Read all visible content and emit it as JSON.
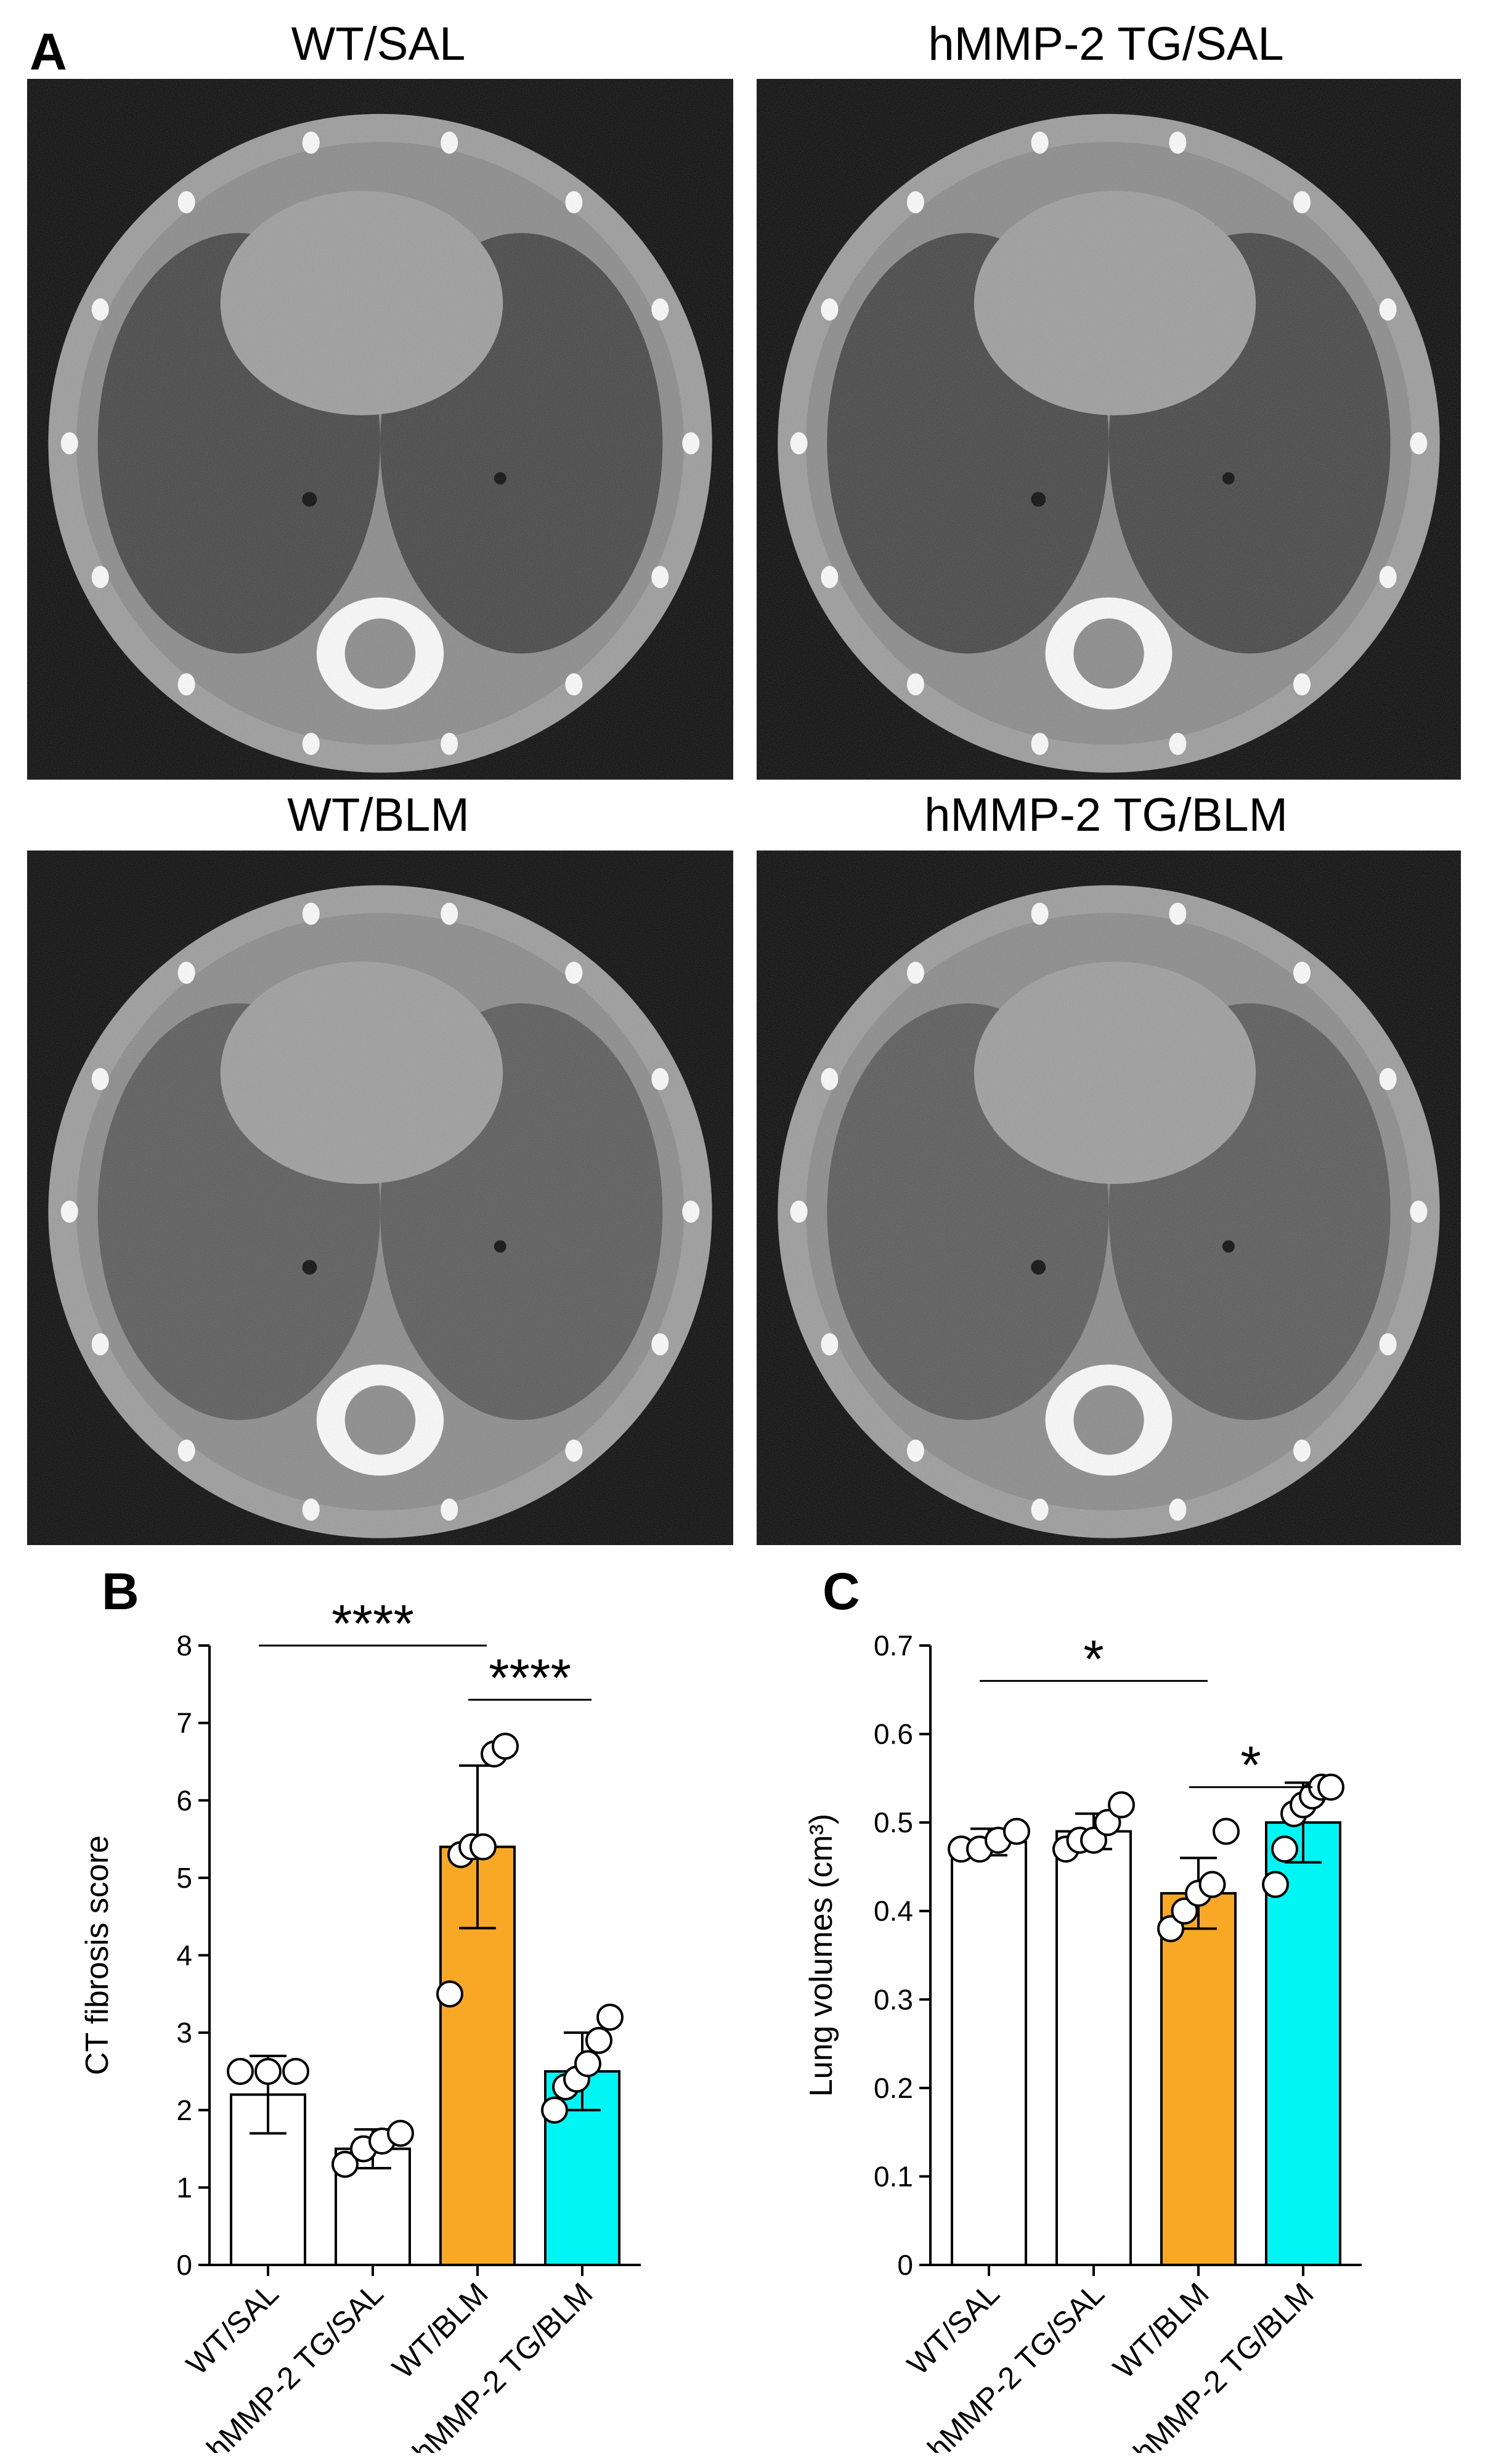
{
  "panel_a": {
    "letter": "A",
    "images": [
      {
        "title": "WT/SAL"
      },
      {
        "title": "hMMP-2 TG/SAL"
      },
      {
        "title": "WT/BLM"
      },
      {
        "title": "hMMP-2 TG/BLM"
      }
    ]
  },
  "panel_b": {
    "letter": "B"
  },
  "panel_c": {
    "letter": "C"
  },
  "colors": {
    "WT/SAL": "#ffffff",
    "hMMP-2 TG/SAL": "#ffffff",
    "WT/BLM": "#F9A825",
    "hMMP-2 TG/BLM": "#00F5F5",
    "stroke": "#000000"
  },
  "chart_data": [
    {
      "type": "bar",
      "panel": "B",
      "ylabel": "CT  fibrosis score",
      "xlabel": "",
      "ylim": [
        0,
        8
      ],
      "yticks": [
        "0",
        "1",
        "2",
        "3",
        "4",
        "5",
        "6",
        "7",
        "8"
      ],
      "categories": [
        "WT/SAL",
        "hMMP-2 TG/SAL",
        "WT/BLM",
        "hMMP-2 TG/BLM"
      ],
      "values": [
        2.2,
        1.5,
        5.4,
        2.5
      ],
      "sd": [
        0.5,
        0.25,
        1.05,
        0.5
      ],
      "points": [
        [
          2.5,
          2.5,
          2.5
        ],
        [
          1.3,
          1.5,
          1.6,
          1.7
        ],
        [
          3.5,
          5.3,
          5.4,
          5.4,
          6.6,
          6.7
        ],
        [
          2.0,
          2.3,
          2.4,
          2.6,
          2.9,
          3.2
        ]
      ],
      "significance": [
        {
          "from": 0,
          "to": 2,
          "label": "****",
          "y": 8.0
        },
        {
          "from": 2,
          "to": 3,
          "label": "****",
          "y": 7.3
        }
      ]
    },
    {
      "type": "bar",
      "panel": "C",
      "ylabel": "Lung volumes (cm³)",
      "xlabel": "",
      "ylim": [
        0,
        0.7
      ],
      "yticks": [
        "0",
        "0.1",
        "0.2",
        "0.3",
        "0.4",
        "0.5",
        "0.6",
        "0.7"
      ],
      "categories": [
        "WT/SAL",
        "hMMP-2 TG/SAL",
        "WT/BLM",
        "hMMP-2 TG/BLM"
      ],
      "values": [
        0.478,
        0.49,
        0.42,
        0.5
      ],
      "sd": [
        0.015,
        0.02,
        0.04,
        0.045
      ],
      "points": [
        [
          0.47,
          0.47,
          0.48,
          0.49
        ],
        [
          0.47,
          0.48,
          0.48,
          0.5,
          0.52
        ],
        [
          0.38,
          0.4,
          0.42,
          0.43,
          0.49
        ],
        [
          0.43,
          0.47,
          0.51,
          0.52,
          0.53,
          0.54,
          0.54
        ]
      ],
      "significance": [
        {
          "from": 0,
          "to": 2,
          "label": "*",
          "y": 0.66
        },
        {
          "from": 2,
          "to": 3,
          "label": "*",
          "y": 0.54
        }
      ]
    }
  ]
}
